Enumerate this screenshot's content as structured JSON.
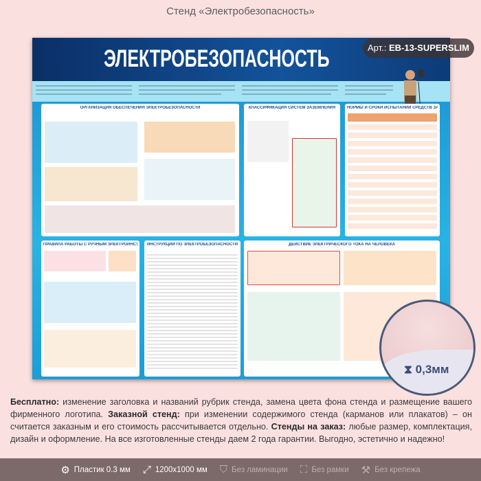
{
  "page_title": "Стенд «Электробезопасность»",
  "stand": {
    "title": "ЭЛЕКТРОБЕЗОПАСНОСТЬ",
    "panels": [
      {
        "title": "ОРГАНИЗАЦИЯ ОБЕСПЕЧЕНИЯ ЭЛЕКТРОБЕЗОПАСНОСТИ"
      },
      {
        "title": "КЛАССИФИКАЦИЯ СИСТЕМ ЗАЗЕМЛЕНИЯ"
      },
      {
        "title": "НОРМЫ И СРОКИ ИСПЫТАНИЙ СРЕДСТВ ЗАЩИТЫ"
      },
      {
        "title": "ПРАВИЛА РАБОТЫ С РУЧНЫМ ЭЛЕКТРОИНСТРУМЕНТОМ"
      },
      {
        "title": "ИНСТРУКЦИИ ПО ЭЛЕКТРОБЕЗОПАСНОСТИ"
      },
      {
        "title": "ДЕЙСТВИЕ ЭЛЕКТРИЧЕСКОГО ТОКА НА ЧЕЛОВЕКА"
      }
    ]
  },
  "article": {
    "label": "Арт.:",
    "code": "EB-13-SUPERSLIM"
  },
  "thickness": "0,3мм",
  "description": {
    "b1": "Бесплатно:",
    "t1": " изменение заголовка и названий рубрик стенда, замена цвета фона стенда и размещение вашего фирменного логотипа. ",
    "b2": "Заказной стенд:",
    "t2": " при изменении содержимого стенда (карманов или плакатов) – он считается заказным и его стоимость рассчитывается отдельно. ",
    "b3": "Стенды на заказ:",
    "t3": " любые размер, комплектация, дизайн и оформление. На все изготовленные стенды даем 2 года гарантии. Выгодно, эстетично и надежно!"
  },
  "footer": [
    {
      "icon": "gear-icon",
      "label": "Пластик 0.3 мм"
    },
    {
      "icon": "expand-icon",
      "label": "1200x1000 мм"
    },
    {
      "icon": "shield-icon",
      "label": "Без ламинации"
    },
    {
      "icon": "frame-icon",
      "label": "Без рамки"
    },
    {
      "icon": "drill-icon",
      "label": "Без крепежа"
    }
  ]
}
